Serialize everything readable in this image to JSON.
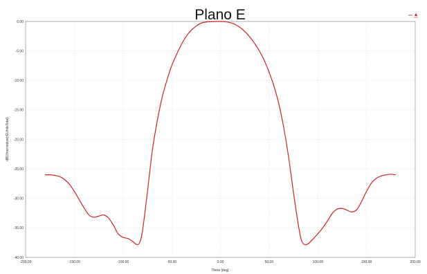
{
  "chart_data": {
    "type": "line",
    "title": "Plano E",
    "xlabel": "Theta [deg]",
    "ylabel": "dB10normalize(rEUnitsTotal)",
    "xlim": [
      -200,
      200
    ],
    "ylim": [
      -40,
      0
    ],
    "xticks": [
      "-200.00",
      "-150.00",
      "-100.00",
      "-50.00",
      "0.00",
      "50.00",
      "100.00",
      "150.00",
      "200.00"
    ],
    "yticks": [
      "0.00",
      "-5.00",
      "-10.00",
      "-15.00",
      "-20.00",
      "-25.00",
      "-30.00",
      "-35.00",
      "-40.00"
    ],
    "grid": true,
    "legend": "top-right",
    "series_color": "#cc2222",
    "series": [
      {
        "x": [
          -180,
          -175,
          -170,
          -165,
          -160,
          -155,
          -150,
          -145,
          -140,
          -135,
          -130,
          -125,
          -120,
          -115,
          -110,
          -105,
          -100,
          -95,
          -90,
          -86,
          -83,
          -80,
          -75,
          -70,
          -65,
          -60,
          -55,
          -50,
          -45,
          -40,
          -35,
          -30,
          -25,
          -20,
          -15,
          -10,
          -5,
          0,
          5,
          10,
          15,
          20,
          25,
          30,
          35,
          40,
          45,
          50,
          55,
          60,
          65,
          70,
          75,
          80,
          83,
          86,
          90,
          95,
          100,
          105,
          110,
          115,
          120,
          125,
          130,
          135,
          140,
          145,
          150,
          155,
          160,
          165,
          170,
          175,
          180
        ],
        "y": [
          -26.0,
          -26.0,
          -26.1,
          -26.3,
          -26.8,
          -27.6,
          -28.8,
          -30.2,
          -31.6,
          -32.8,
          -33.2,
          -33.0,
          -32.8,
          -33.3,
          -34.5,
          -36.0,
          -36.6,
          -36.8,
          -37.3,
          -37.8,
          -37.5,
          -35.5,
          -29.0,
          -22.0,
          -17.0,
          -13.0,
          -10.0,
          -7.5,
          -5.6,
          -3.9,
          -2.5,
          -1.5,
          -0.8,
          -0.3,
          -0.1,
          -0.05,
          -0.01,
          0.0,
          -0.05,
          -0.2,
          -0.5,
          -1.0,
          -1.7,
          -2.6,
          -3.7,
          -5.0,
          -6.6,
          -8.6,
          -11.0,
          -14.0,
          -18.0,
          -23.0,
          -29.0,
          -34.5,
          -37.0,
          -37.8,
          -37.7,
          -36.9,
          -36.0,
          -35.0,
          -33.8,
          -32.5,
          -31.8,
          -31.7,
          -32.0,
          -32.3,
          -31.9,
          -30.5,
          -28.8,
          -27.4,
          -26.6,
          -26.2,
          -26.0,
          -25.9,
          -26.0
        ]
      }
    ]
  }
}
